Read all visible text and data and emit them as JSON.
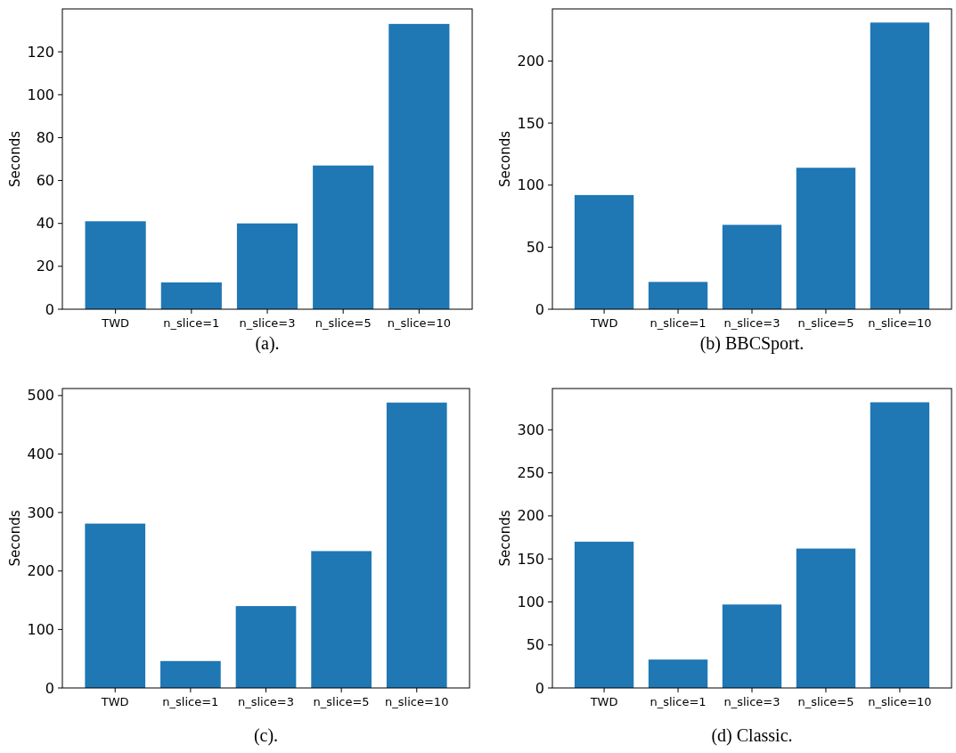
{
  "chart_data": [
    {
      "type": "bar",
      "title": "(a).",
      "ylabel": "Seconds",
      "categories": [
        "TWD",
        "n_slice=1",
        "n_slice=3",
        "n_slice=5",
        "n_slice=10"
      ],
      "values": [
        41,
        12.5,
        40,
        67,
        133
      ],
      "color": "#1f77b4",
      "ylim": [
        0,
        140
      ],
      "yticks": [
        0,
        20,
        40,
        60,
        80,
        100,
        120
      ]
    },
    {
      "type": "bar",
      "title": "(b) BBCSport.",
      "ylabel": "Seconds",
      "categories": [
        "TWD",
        "n_slice=1",
        "n_slice=3",
        "n_slice=5",
        "n_slice=10"
      ],
      "values": [
        92,
        22,
        68,
        114,
        231
      ],
      "color": "#1f77b4",
      "ylim": [
        0,
        242
      ],
      "yticks": [
        0,
        50,
        100,
        150,
        200
      ]
    },
    {
      "type": "bar",
      "title": "(c).",
      "ylabel": "Seconds",
      "categories": [
        "TWD",
        "n_slice=1",
        "n_slice=3",
        "n_slice=5",
        "n_slice=10"
      ],
      "values": [
        281,
        46,
        140,
        234,
        488
      ],
      "color": "#1f77b4",
      "ylim": [
        0,
        512
      ],
      "yticks": [
        0,
        100,
        200,
        300,
        400,
        500
      ]
    },
    {
      "type": "bar",
      "title": "(d) Classic.",
      "ylabel": "Seconds",
      "categories": [
        "TWD",
        "n_slice=1",
        "n_slice=3",
        "n_slice=5",
        "n_slice=10"
      ],
      "values": [
        170,
        33,
        97,
        162,
        332
      ],
      "color": "#1f77b4",
      "ylim": [
        0,
        348
      ],
      "yticks": [
        0,
        50,
        100,
        150,
        200,
        250,
        300
      ]
    }
  ]
}
